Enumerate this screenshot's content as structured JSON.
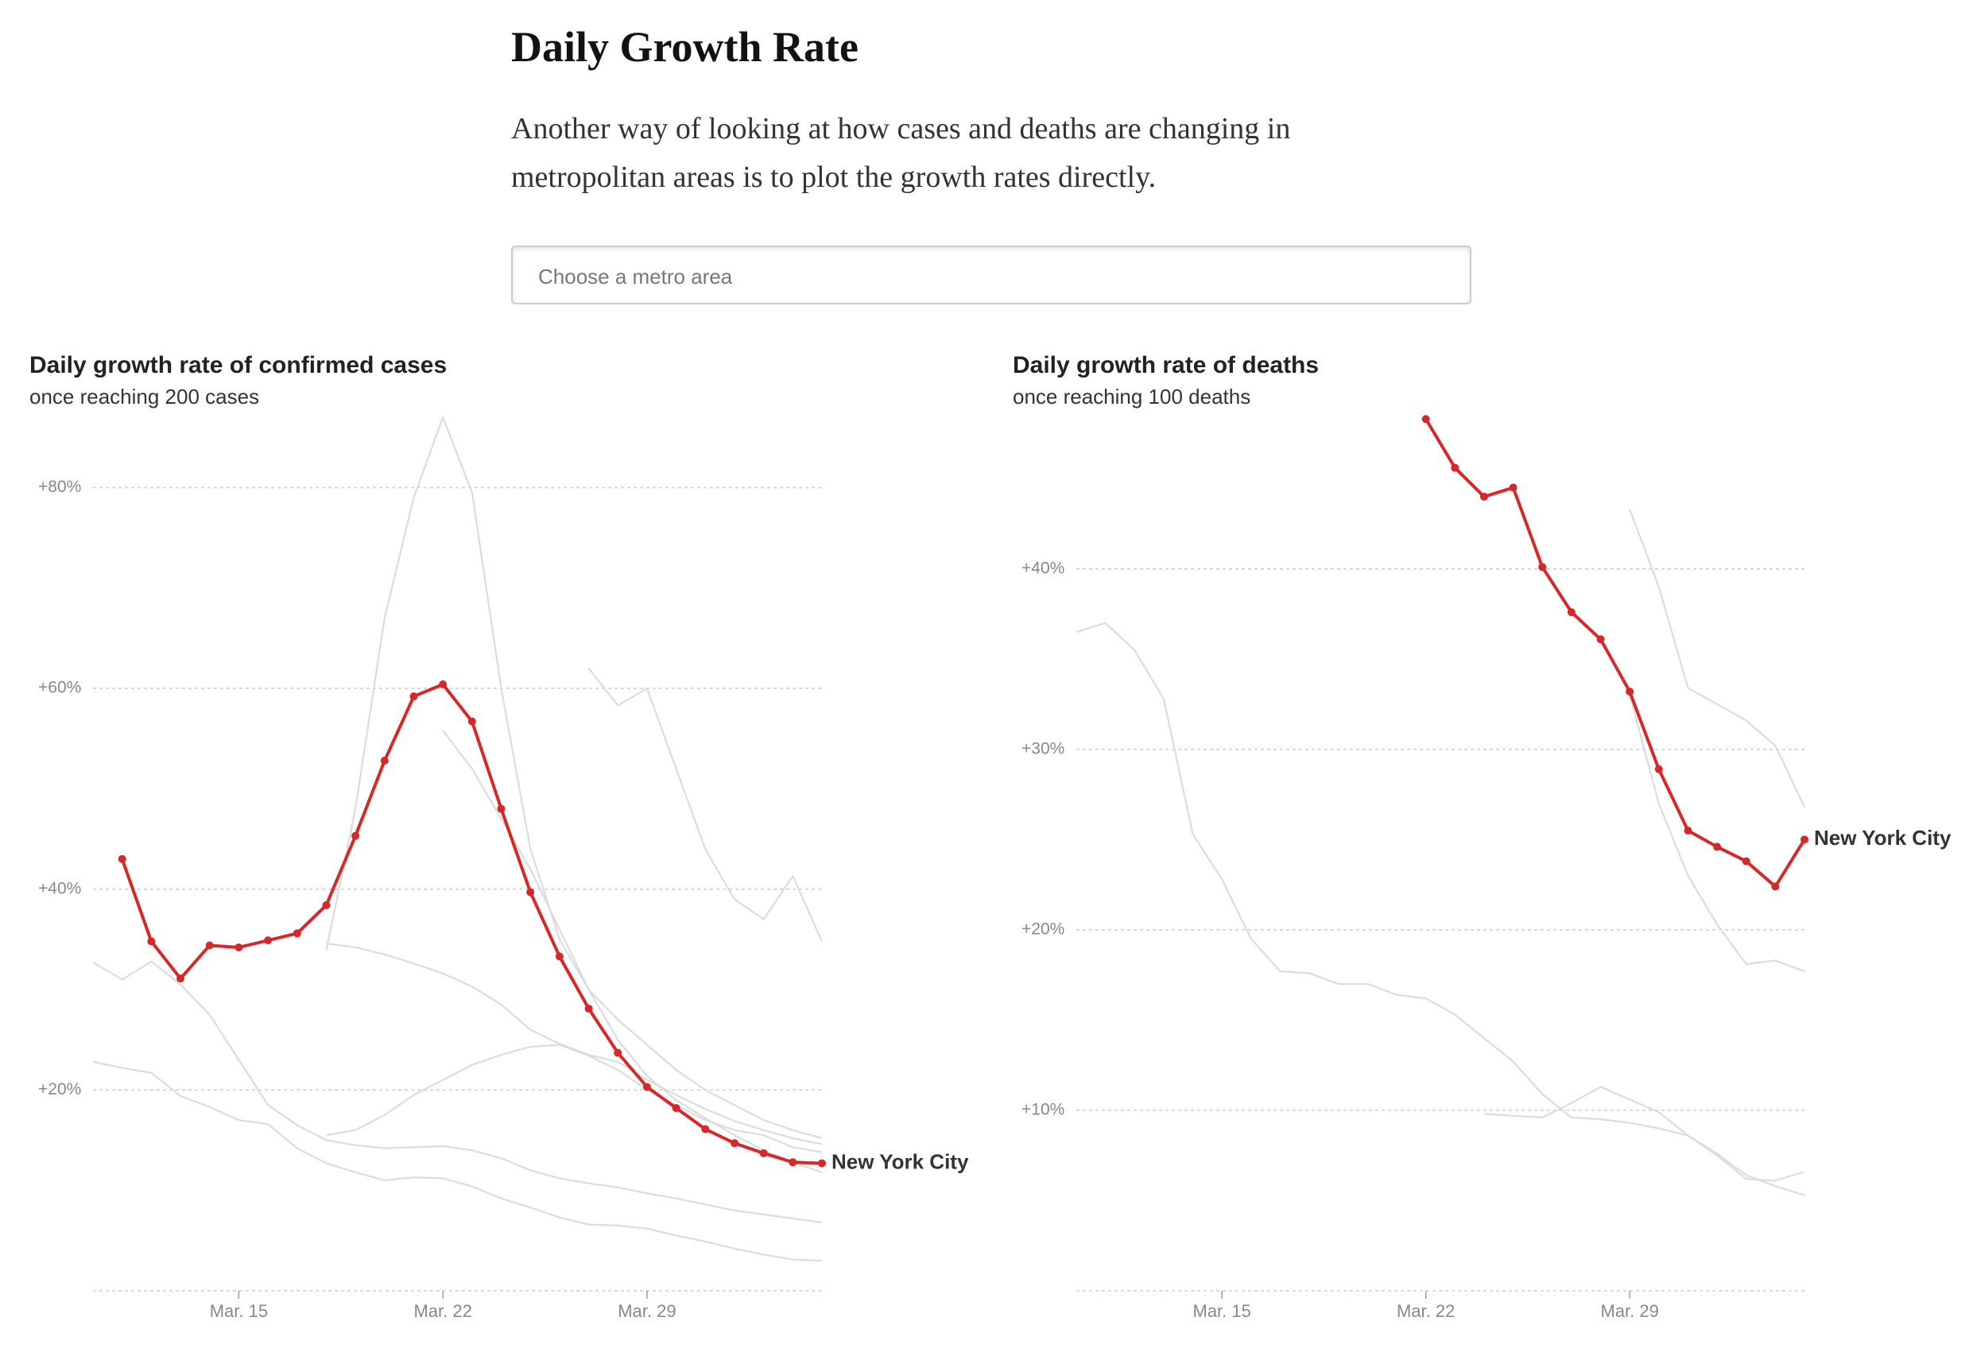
{
  "header": {
    "title": "Daily Growth Rate",
    "text": "Another way of looking at how cases and deaths are changing in metropolitan areas is to plot the growth rates directly."
  },
  "search": {
    "placeholder": "Choose a metro area"
  },
  "chart_data": [
    {
      "type": "line",
      "title": "Daily growth rate of confirmed cases",
      "subtitle": "once reaching 200 cases",
      "x": [
        10,
        11,
        12,
        13,
        14,
        15,
        16,
        17,
        18,
        19,
        20,
        21,
        22,
        23,
        24,
        25,
        26,
        27,
        28,
        29,
        30,
        31,
        32,
        33,
        34,
        35
      ],
      "xlim": [
        10,
        35
      ],
      "xticks": [
        {
          "value": 15,
          "label": "Mar. 15"
        },
        {
          "value": 22,
          "label": "Mar. 22"
        },
        {
          "value": 29,
          "label": "Mar. 29"
        }
      ],
      "ylim": [
        0,
        87
      ],
      "yticks": [
        {
          "value": 20,
          "label": "+20%"
        },
        {
          "value": 40,
          "label": "+40%"
        },
        {
          "value": 60,
          "label": "+60%"
        },
        {
          "value": 80,
          "label": "+80%"
        }
      ],
      "grid": true,
      "series": [
        {
          "color": "#dcdcdc",
          "values": [
            22.8,
            22.2,
            21.7,
            19.4,
            18.3,
            17.0,
            16.6,
            14.2,
            12.7,
            11.8,
            11.0,
            11.3,
            11.2,
            10.4,
            9.2,
            8.3,
            7.3,
            6.6,
            6.5,
            6.2,
            5.5,
            4.9,
            4.2,
            3.6,
            3.1,
            3.0
          ]
        },
        {
          "color": "#dcdcdc",
          "values": [
            32.7,
            31.0,
            32.8,
            30.5,
            27.5,
            23.0,
            18.5,
            16.5,
            15.0,
            14.5,
            14.2,
            14.3,
            14.4,
            14.0,
            13.2,
            12.0,
            11.2,
            10.7,
            10.3,
            9.7,
            9.2,
            8.6,
            8.0,
            7.6,
            7.2,
            6.8
          ]
        },
        {
          "color": "#dcdcdc",
          "values": [
            null,
            null,
            null,
            null,
            null,
            null,
            null,
            null,
            33.9,
            48.0,
            67.0,
            79.0,
            87.0,
            79.5,
            60.0,
            44.0,
            35.0,
            30.0,
            27.0,
            24.5,
            22.0,
            20.0,
            18.5,
            17.0,
            16.0,
            15.2
          ]
        },
        {
          "color": "#dcdcdc",
          "values": [
            null,
            null,
            null,
            null,
            null,
            null,
            null,
            null,
            null,
            null,
            null,
            null,
            null,
            null,
            null,
            null,
            null,
            62.0,
            58.3,
            60.0,
            52.0,
            44.0,
            39.0,
            37.0,
            41.3,
            34.8
          ]
        },
        {
          "color": "#dcdcdc",
          "values": [
            null,
            null,
            null,
            null,
            null,
            null,
            null,
            null,
            34.6,
            34.2,
            33.5,
            32.6,
            31.6,
            30.3,
            28.5,
            26.0,
            24.6,
            23.5,
            22.8,
            21.0,
            19.5,
            18.1,
            16.9,
            16.0,
            15.2,
            14.6
          ]
        },
        {
          "color": "#dcdcdc",
          "values": [
            null,
            null,
            null,
            null,
            null,
            null,
            null,
            null,
            null,
            null,
            null,
            null,
            55.8,
            52.0,
            47.0,
            42.0,
            36.0,
            30.0,
            25.0,
            21.4,
            19.0,
            17.2,
            15.5,
            14.0,
            12.8,
            11.8
          ]
        },
        {
          "color": "#dcdcdc",
          "values": [
            null,
            null,
            null,
            null,
            null,
            null,
            null,
            null,
            15.5,
            16.0,
            17.5,
            19.5,
            21.0,
            22.5,
            23.5,
            24.3,
            24.5,
            23.4,
            22.0,
            20.0,
            18.5,
            17.0,
            16.0,
            15.5,
            14.3,
            13.8
          ]
        },
        {
          "name": "New York City",
          "color": "#d62828",
          "markers": true,
          "values": [
            null,
            43.0,
            34.8,
            31.1,
            34.4,
            34.2,
            34.9,
            35.6,
            38.4,
            45.3,
            52.8,
            59.2,
            60.4,
            56.7,
            48.0,
            39.7,
            33.3,
            28.1,
            23.7,
            20.3,
            18.2,
            16.1,
            14.7,
            13.7,
            12.8,
            12.7
          ]
        }
      ]
    },
    {
      "type": "line",
      "title": "Daily growth rate of deaths",
      "subtitle": "once reaching 100 deaths",
      "x": [
        10,
        11,
        12,
        13,
        14,
        15,
        16,
        17,
        18,
        19,
        20,
        21,
        22,
        23,
        24,
        25,
        26,
        27,
        28,
        29,
        30,
        31,
        32,
        33,
        34,
        35
      ],
      "xlim": [
        10,
        35
      ],
      "xticks": [
        {
          "value": 15,
          "label": "Mar. 15"
        },
        {
          "value": 22,
          "label": "Mar. 22"
        },
        {
          "value": 29,
          "label": "Mar. 29"
        }
      ],
      "ylim": [
        0,
        48.4
      ],
      "yticks": [
        {
          "value": 10,
          "label": "+10%"
        },
        {
          "value": 20,
          "label": "+20%"
        },
        {
          "value": 30,
          "label": "+30%"
        },
        {
          "value": 40,
          "label": "+40%"
        }
      ],
      "grid": true,
      "series": [
        {
          "color": "#dcdcdc",
          "values": [
            36.5,
            37.0,
            35.5,
            32.8,
            25.3,
            22.8,
            19.5,
            17.7,
            17.6,
            17.0,
            17.0,
            16.4,
            16.2,
            15.3,
            14.0,
            12.7,
            10.9,
            9.6,
            9.5,
            9.3,
            9.0,
            8.6,
            7.6,
            6.4,
            5.8,
            5.3
          ]
        },
        {
          "color": "#dcdcdc",
          "values": [
            null,
            null,
            null,
            null,
            null,
            null,
            null,
            null,
            null,
            null,
            null,
            null,
            null,
            null,
            9.8,
            9.7,
            9.6,
            10.4,
            11.3,
            10.6,
            9.9,
            8.6,
            7.5,
            6.2,
            6.1,
            6.6
          ]
        },
        {
          "color": "#dcdcdc",
          "values": [
            null,
            null,
            null,
            null,
            null,
            null,
            null,
            null,
            null,
            null,
            null,
            null,
            null,
            null,
            null,
            null,
            null,
            null,
            null,
            43.3,
            39.0,
            33.4,
            32.5,
            31.6,
            30.2,
            26.8
          ]
        },
        {
          "color": "#dcdcdc",
          "values": [
            null,
            null,
            null,
            null,
            null,
            null,
            null,
            null,
            null,
            null,
            null,
            null,
            null,
            null,
            null,
            null,
            null,
            null,
            null,
            33.0,
            27.0,
            23.0,
            20.3,
            18.1,
            18.3,
            17.7
          ]
        },
        {
          "name": "New York City",
          "color": "#d62828",
          "markers": true,
          "values": [
            null,
            null,
            null,
            null,
            null,
            null,
            null,
            null,
            null,
            null,
            null,
            null,
            48.3,
            45.6,
            44.0,
            44.5,
            40.1,
            37.6,
            36.1,
            33.2,
            28.9,
            25.5,
            24.6,
            23.8,
            22.4,
            25.0
          ]
        }
      ]
    }
  ]
}
